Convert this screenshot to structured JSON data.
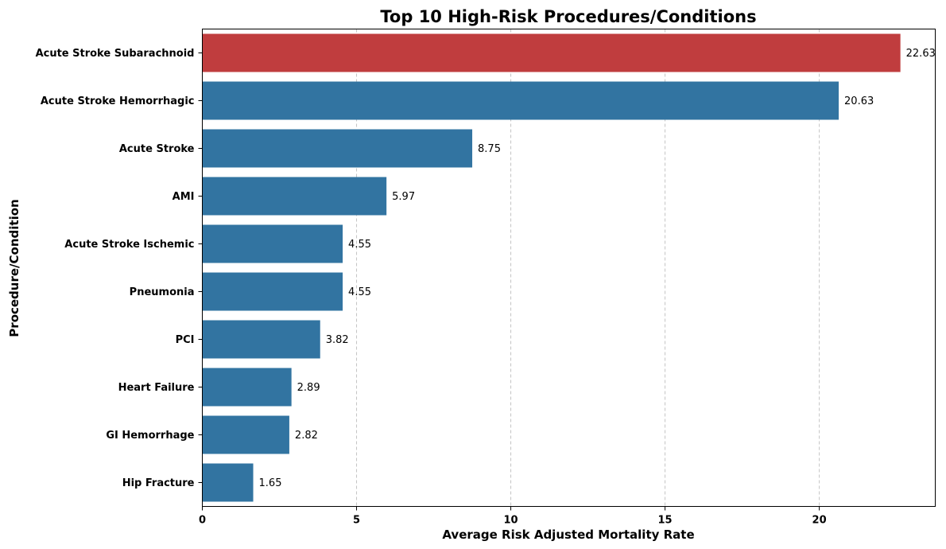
{
  "chart_data": {
    "type": "bar",
    "orientation": "horizontal",
    "title": "Top 10 High-Risk Procedures/Conditions",
    "xlabel": "Average Risk Adjusted Mortality Rate",
    "ylabel": "Procedure/Condition",
    "categories": [
      "Acute Stroke Subarachnoid",
      "Acute Stroke Hemorrhagic",
      "Acute Stroke",
      "AMI",
      "Acute Stroke Ischemic",
      "Pneumonia",
      "PCI",
      "Heart Failure",
      "GI Hemorrhage",
      "Hip Fracture"
    ],
    "values": [
      22.63,
      20.63,
      8.75,
      5.97,
      4.55,
      4.55,
      3.82,
      2.89,
      2.82,
      1.65
    ],
    "data_labels": [
      "22.63",
      "20.63",
      "8.75",
      "5.97",
      "4.55",
      "4.55",
      "3.82",
      "2.89",
      "2.82",
      "1.65"
    ],
    "xlim": [
      0,
      23.76
    ],
    "xticks": [
      0,
      5,
      10,
      15,
      20
    ],
    "xtick_labels": [
      "0",
      "5",
      "10",
      "15",
      "20"
    ],
    "grid": "x-axis dashed",
    "colors": {
      "highlight": "#c03d3e",
      "default": "#3274a1"
    },
    "highlight_index": 0
  }
}
